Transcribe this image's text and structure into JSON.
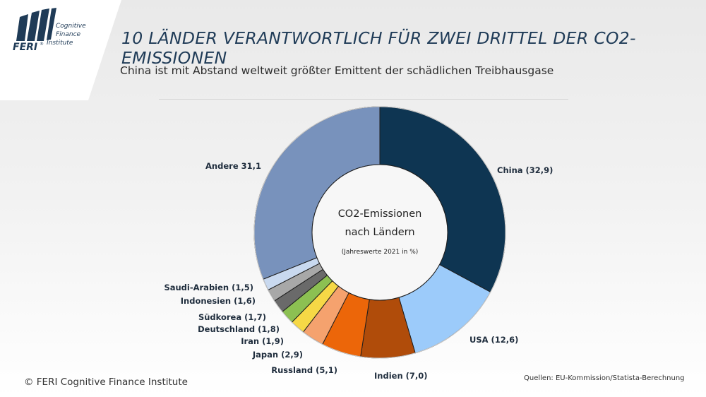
{
  "logo": {
    "brand": "FERI",
    "reg": "®",
    "line1": "Cognitive",
    "line2": "Finance",
    "line3": "Institute"
  },
  "header": {
    "title": "10 LÄNDER VERANTWORTLICH FÜR ZWEI DRITTEL DER CO2-EMISSIONEN",
    "subtitle": "China ist mit Abstand weltweit größter Emittent der schädlichen Treibhausgase"
  },
  "footer": {
    "copyright": "© FERI Cognitive Finance Institute",
    "source": "Quellen: EU-Kommission/Statista-Berechnung"
  },
  "colors": {
    "title": "#1f3b57",
    "logo": "#1f3b57"
  },
  "chart_data": {
    "type": "pie",
    "variant": "donut",
    "center_line1": "CO2-Emissionen",
    "center_line2": "nach Ländern",
    "center_note": "(Jahreswerte 2021 in %)",
    "slices": [
      {
        "name": "China",
        "label": "China (32,9)",
        "value": 32.9,
        "color": "#0e3552"
      },
      {
        "name": "USA",
        "label": "USA (12,6)",
        "value": 12.6,
        "color": "#9ccbfa"
      },
      {
        "name": "Indien",
        "label": "Indien (7,0)",
        "value": 7.0,
        "color": "#b04c0a"
      },
      {
        "name": "Russland",
        "label": "Russland (5,1)",
        "value": 5.1,
        "color": "#ec6609"
      },
      {
        "name": "Japan",
        "label": "Japan (2,9)",
        "value": 2.9,
        "color": "#f5a26e"
      },
      {
        "name": "Iran",
        "label": "Iran (1,9)",
        "value": 1.9,
        "color": "#f6d846"
      },
      {
        "name": "Deutschland",
        "label": "Deutschland (1,8)",
        "value": 1.8,
        "color": "#8cc052"
      },
      {
        "name": "Südkorea",
        "label": "Südkorea (1,7)",
        "value": 1.7,
        "color": "#6a6a6a"
      },
      {
        "name": "Indonesien",
        "label": "Indonesien (1,6)",
        "value": 1.6,
        "color": "#a8a8a8"
      },
      {
        "name": "Saudi-Arabien",
        "label": "Saudi-Arabien (1,5)",
        "value": 1.5,
        "color": "#c9d9ef"
      },
      {
        "name": "Andere",
        "label": "Andere 31,1",
        "value": 31.1,
        "color": "#7892bc"
      }
    ]
  }
}
